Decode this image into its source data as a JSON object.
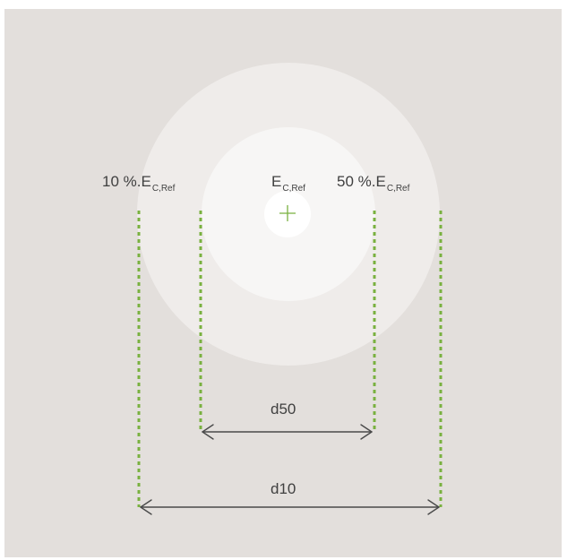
{
  "colors": {
    "background": "#e3dfdc",
    "outer_zone": "#efecea",
    "inner_zone": "#f7f6f5",
    "center": "#ffffff",
    "guide_lines": "#79b13f",
    "arrows": "#4a4a4a",
    "text": "#404040"
  },
  "labels": {
    "outer_prefix": "10 %.E",
    "outer_sub": "C,Ref",
    "center_prefix": "E",
    "center_sub": "C,Ref",
    "inner_prefix": "50 %.E",
    "inner_sub": "C,Ref"
  },
  "dimensions": {
    "d50": "d50",
    "d10": "d10"
  }
}
